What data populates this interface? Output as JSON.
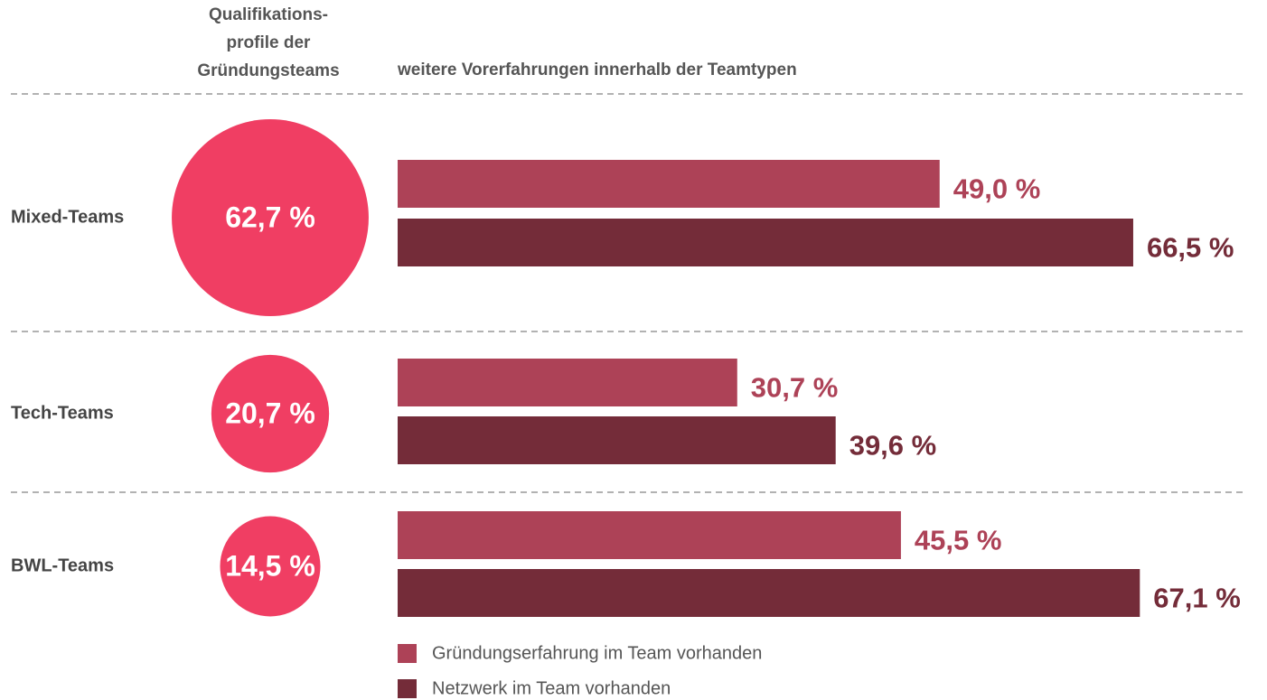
{
  "chart_data": {
    "type": "bar",
    "header_left": [
      "Qualifikations-",
      "profile der",
      "Gründungsteams"
    ],
    "header_right": "weitere Vorerfahrungen innerhalb der Teamtypen",
    "categories": [
      "Mixed-Teams",
      "Tech-Teams",
      "BWL-Teams"
    ],
    "shares": {
      "color": "#f03e63",
      "values": [
        62.7,
        20.7,
        14.5
      ],
      "value_labels": [
        "62,7 %",
        "20,7 %",
        "14,5 %"
      ]
    },
    "series": [
      {
        "name": "Gründungserfahrung im Team vorhanden",
        "color": "#ad4257",
        "values": [
          49.0,
          30.7,
          45.5
        ],
        "value_labels": [
          "49,0 %",
          "30,7 %",
          "45,5 %"
        ]
      },
      {
        "name": "Netzwerk im Team vorhanden",
        "color": "#742c39",
        "values": [
          66.5,
          39.6,
          67.1
        ],
        "value_labels": [
          "66,5 %",
          "39,6 %",
          "67,1 %"
        ]
      }
    ]
  }
}
